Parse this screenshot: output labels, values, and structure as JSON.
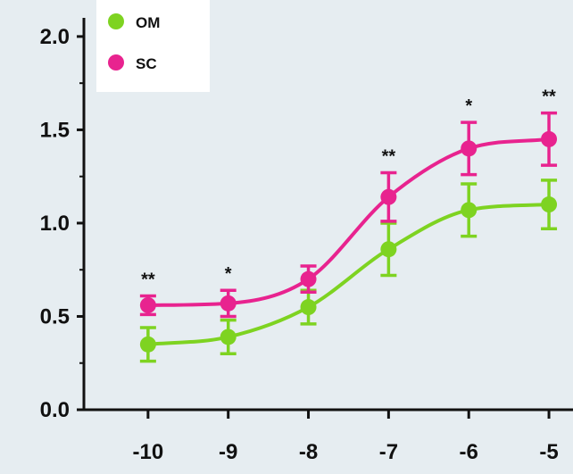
{
  "chart_data": {
    "type": "line",
    "x": [
      -10,
      -9,
      -8,
      -7,
      -6,
      -5
    ],
    "xticks": [
      "-10",
      "-9",
      "-8",
      "-7",
      "-6",
      "-5"
    ],
    "yticks": [
      "0.0",
      "0.5",
      "1.0",
      "1.5",
      "2.0"
    ],
    "ylim": [
      0,
      2.1
    ],
    "xlim": [
      -10.8,
      -4.7
    ],
    "xlabel": "",
    "ylabel": "",
    "title": "",
    "grid": false,
    "legend_position": "top-left",
    "series": [
      {
        "name": "OM",
        "color": "#7ed321",
        "values": [
          0.35,
          0.39,
          0.55,
          0.86,
          1.07,
          1.1
        ],
        "errors": [
          0.09,
          0.09,
          0.09,
          0.14,
          0.14,
          0.13
        ]
      },
      {
        "name": "SC",
        "color": "#e8238f",
        "values": [
          0.56,
          0.57,
          0.7,
          1.14,
          1.4,
          1.45
        ],
        "errors": [
          0.05,
          0.07,
          0.07,
          0.13,
          0.14,
          0.14
        ]
      }
    ],
    "annotations": [
      "**",
      "*",
      "",
      "**",
      "*",
      "**"
    ]
  }
}
